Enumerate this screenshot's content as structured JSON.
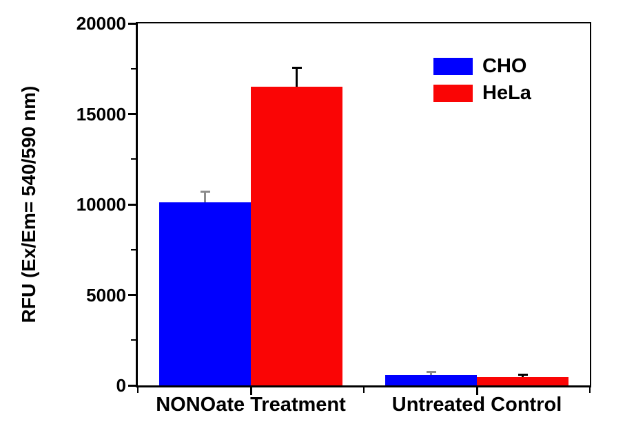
{
  "chart_data": {
    "type": "bar",
    "title": "",
    "xlabel": "",
    "ylabel": "RFU (Ex/Em= 540/590 nm)",
    "categories": [
      "NONOate Treatment",
      "Untreated Control"
    ],
    "series": [
      {
        "name": "CHO",
        "color": "#0000FF",
        "error_color": "#8C8C8C",
        "values": [
          10100,
          560
        ],
        "errors_plus": [
          620,
          200
        ]
      },
      {
        "name": "HeLa",
        "color": "#FA0505",
        "error_color": "#000000",
        "values": [
          16500,
          470
        ],
        "errors_plus": [
          1050,
          120
        ]
      }
    ],
    "ylim": [
      0,
      20000
    ],
    "y_major_ticks": [
      0,
      5000,
      10000,
      15000,
      20000
    ],
    "y_minor_ticks": [
      2500,
      7500,
      12500,
      17500
    ],
    "grid": false,
    "legend_position": "top-right",
    "frame": "box",
    "axis_color": "#000000",
    "text_color": "#000000",
    "background": "#FFFFFF"
  }
}
